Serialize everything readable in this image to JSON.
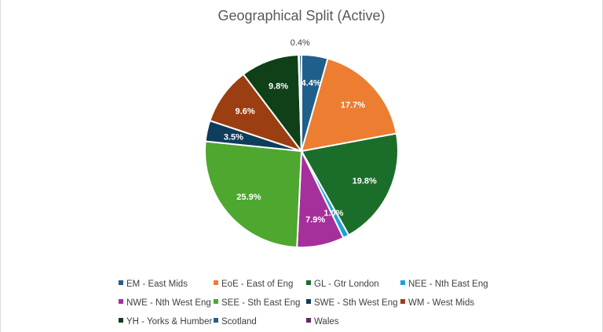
{
  "chart_data": {
    "type": "pie",
    "title": "Geographical Split (Active)",
    "categories": [
      "EM - East Mids",
      "EoE - East of Eng",
      "GL - Gtr London",
      "NEE - Nth East Eng",
      "NWE - Nth West Eng",
      "SEE - Sth East Eng",
      "SWE - Sth West Eng",
      "WM - West Mids",
      "YH - Yorks & Humber",
      "Scotland",
      "Wales"
    ],
    "values": [
      4.4,
      17.7,
      19.8,
      1.0,
      7.9,
      25.9,
      3.5,
      9.6,
      9.8,
      0.4,
      0.1
    ],
    "data_labels": [
      "4.4%",
      "17.7%",
      "19.8%",
      "1.0%",
      "7.9%",
      "25.9%",
      "3.5%",
      "9.6%",
      "9.8%",
      "0.4%",
      ""
    ],
    "colors": [
      "#1f5f8b",
      "#ed7d31",
      "#1a6e2a",
      "#1aa3d8",
      "#a5309b",
      "#4ea72e",
      "#0f3d5c",
      "#9b3f12",
      "#0f4017",
      "#24608f",
      "#6b2466"
    ],
    "legend_position": "bottom",
    "slice_order": [
      0,
      1,
      2,
      3,
      4,
      5,
      6,
      7,
      8,
      10,
      9
    ]
  }
}
